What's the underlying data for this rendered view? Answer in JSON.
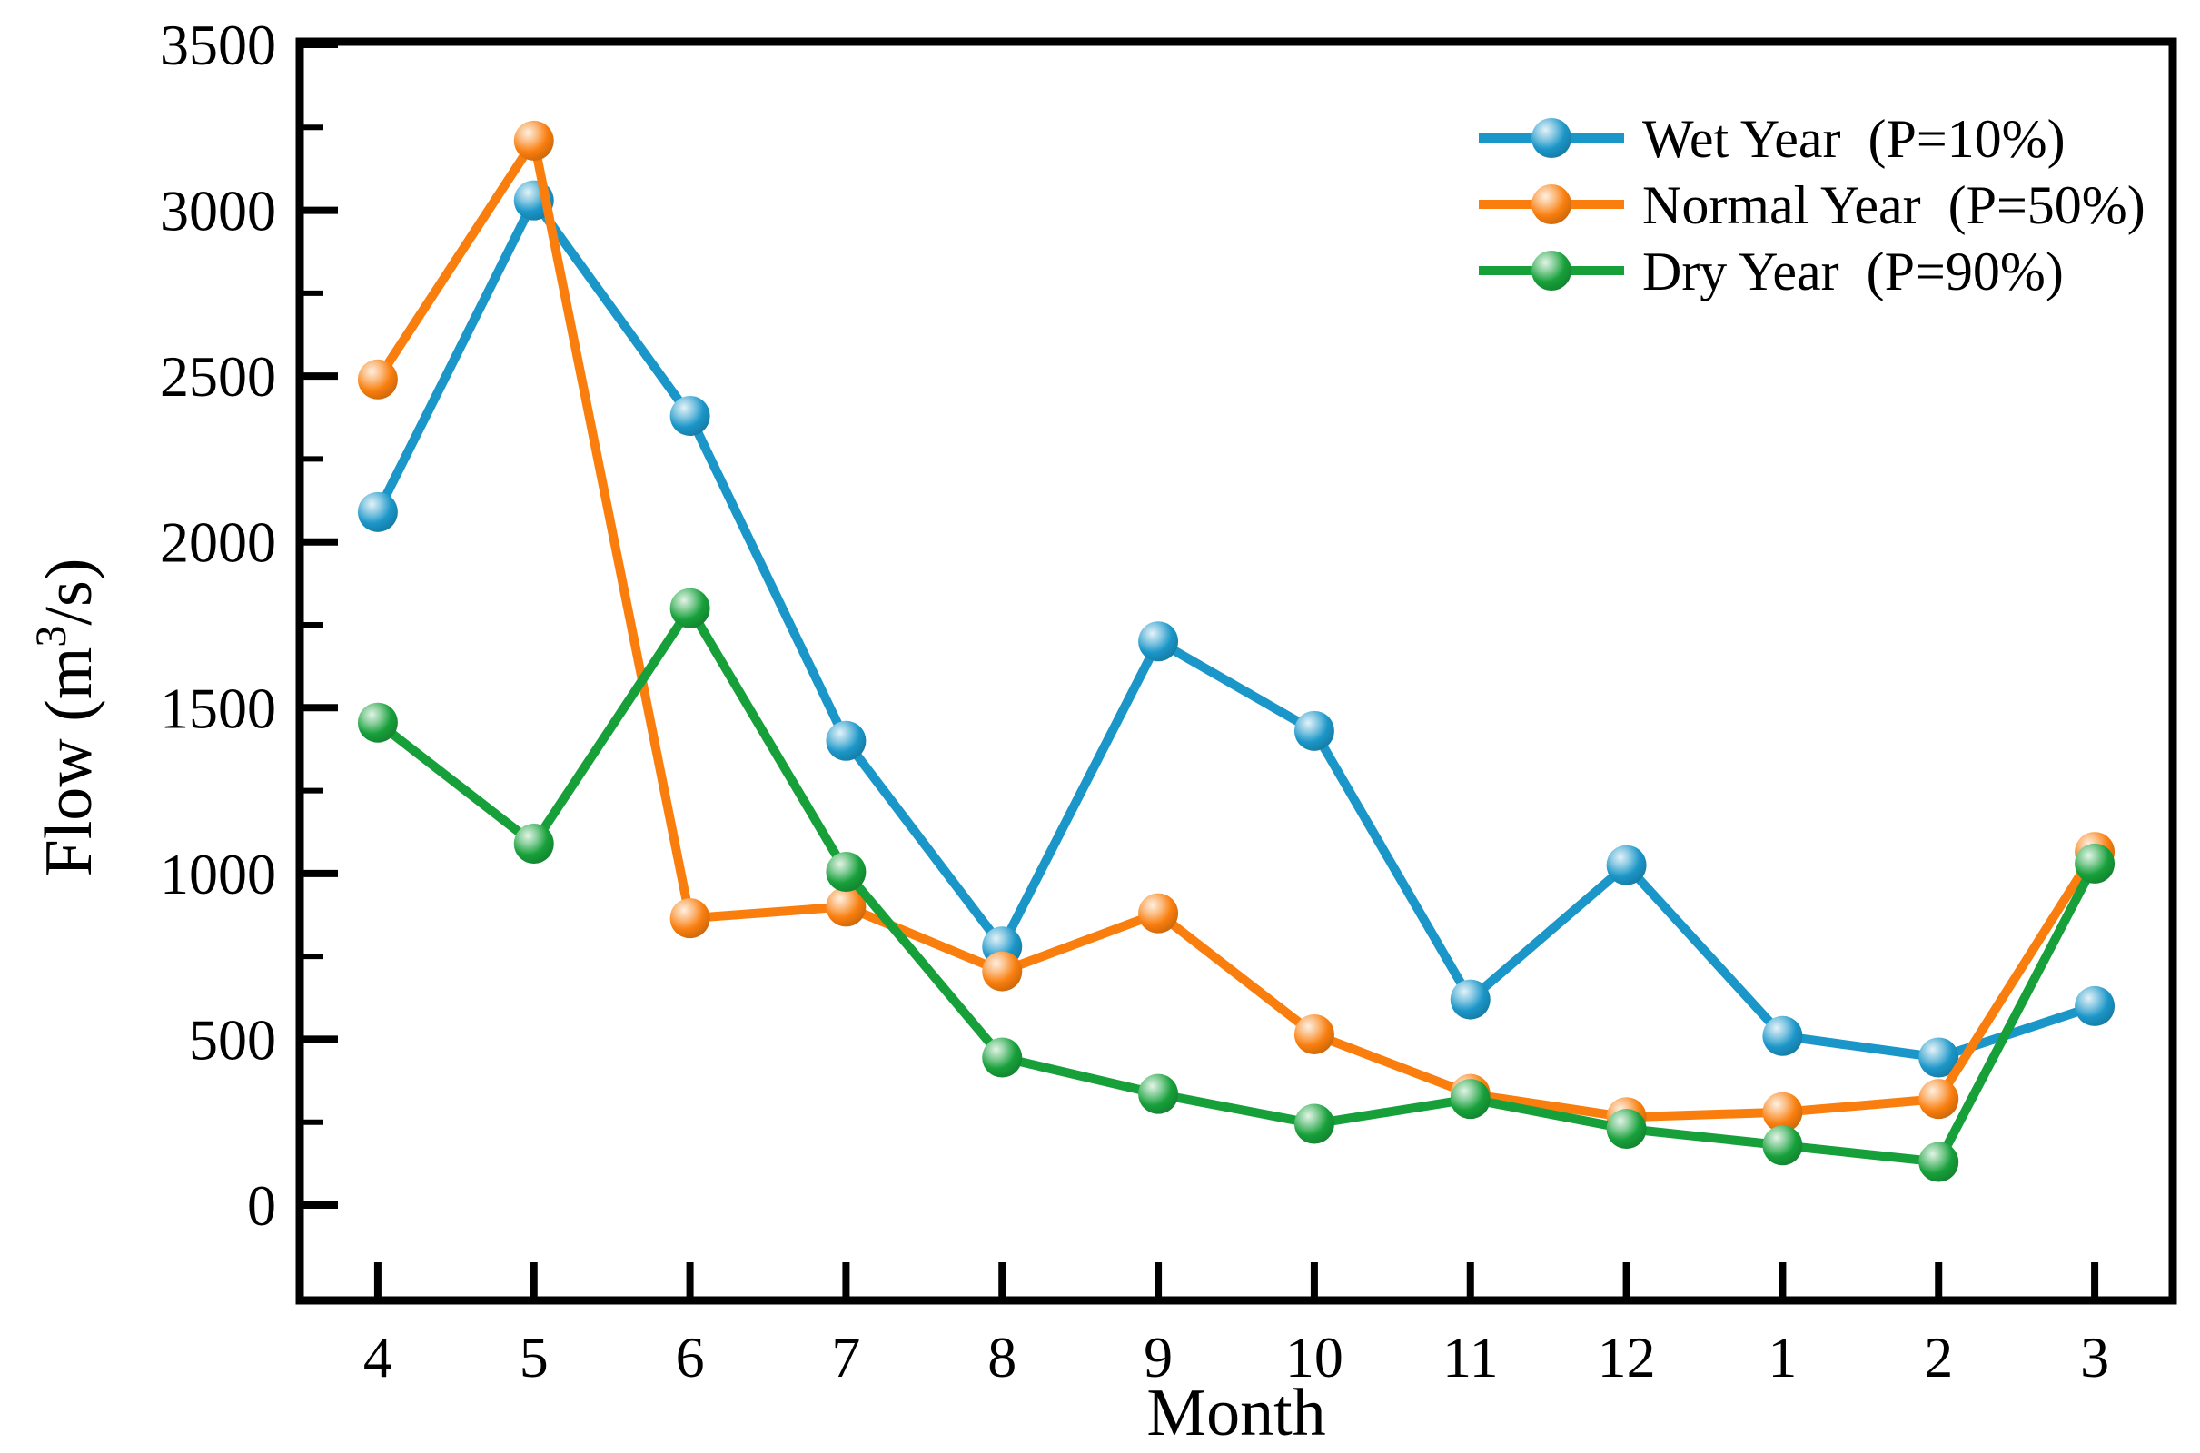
{
  "figure": {
    "background": "#ffffff",
    "frame_color": "#000000"
  },
  "chart_data": {
    "type": "line",
    "title": "",
    "xlabel": "Month",
    "ylabel": "Flow (m³/s)",
    "ylabel_parts": {
      "pre": "Flow (m",
      "sup": "3",
      "post": "/s)"
    },
    "categories": [
      "4",
      "5",
      "6",
      "7",
      "8",
      "9",
      "10",
      "11",
      "12",
      "1",
      "2",
      "3"
    ],
    "ylim": [
      0,
      3500
    ],
    "ytick_major_step": 500,
    "ytick_minor_step": 250,
    "ytick_labels": [
      "0",
      "500",
      "1000",
      "1500",
      "2000",
      "2500",
      "3000",
      "3500"
    ],
    "grid": false,
    "legend_position": "top-right-inside",
    "series": [
      {
        "name": "Wet Year  (P=10%)",
        "color": "#1B96C8",
        "values": [
          2090,
          3030,
          2380,
          1400,
          780,
          1700,
          1430,
          620,
          1025,
          510,
          445,
          600
        ]
      },
      {
        "name": "Normal Year  (P=50%)",
        "color": "#F97E0E",
        "values": [
          2490,
          3210,
          865,
          900,
          705,
          880,
          515,
          335,
          265,
          280,
          320,
          1065
        ]
      },
      {
        "name": "Dry Year  (P=90%)",
        "color": "#17A03A",
        "values": [
          1455,
          1090,
          1800,
          1005,
          445,
          335,
          245,
          320,
          230,
          180,
          130,
          1030
        ]
      }
    ]
  }
}
